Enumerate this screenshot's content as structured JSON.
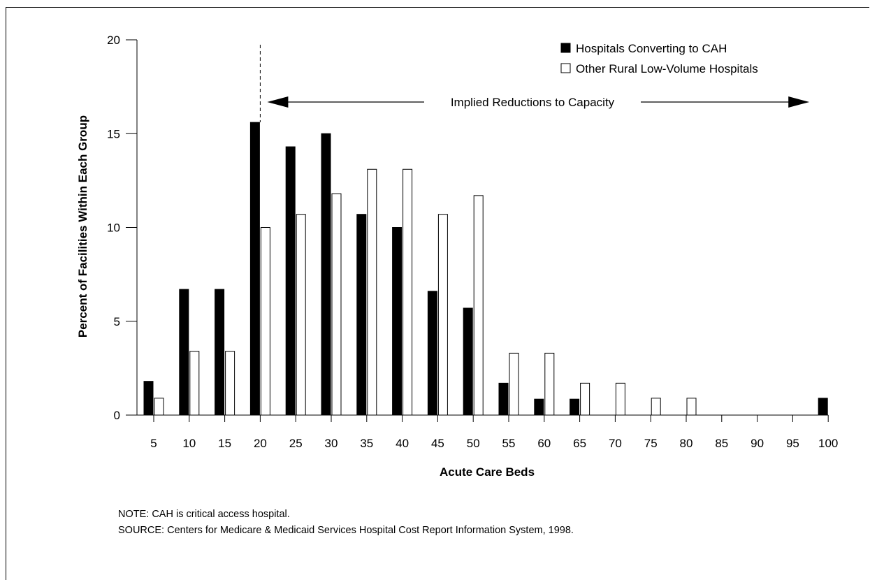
{
  "chart_data": {
    "type": "bar",
    "title": "",
    "xlabel": "Acute Care Beds",
    "ylabel": "Percent of Facilities Within Each Group",
    "ylim": [
      0,
      20
    ],
    "yticks": [
      0,
      5,
      10,
      15,
      20
    ],
    "categories": [
      "5",
      "10",
      "15",
      "20",
      "25",
      "30",
      "35",
      "40",
      "45",
      "50",
      "55",
      "60",
      "65",
      "70",
      "75",
      "80",
      "85",
      "90",
      "95",
      "100"
    ],
    "series": [
      {
        "name": "Hospitals Converting to CAH",
        "fill": "#000000",
        "values": [
          1.8,
          6.7,
          6.7,
          15.6,
          14.3,
          15.0,
          10.7,
          10.0,
          6.6,
          5.7,
          1.7,
          0.85,
          0.85,
          0,
          0,
          0,
          0,
          0,
          0,
          0.9
        ]
      },
      {
        "name": "Other Rural Low-Volume Hospitals",
        "fill": "#ffffff",
        "values": [
          0.9,
          3.4,
          3.4,
          10.0,
          10.7,
          11.8,
          13.1,
          13.1,
          10.7,
          11.7,
          3.3,
          3.3,
          1.7,
          1.7,
          0.9,
          0.9,
          0,
          0,
          0,
          0
        ]
      }
    ],
    "legend_position": "top-right",
    "annotation": {
      "text": "Implied Reductions to Capacity",
      "from_category": "20",
      "to_category": "100",
      "reference_line_at": "20"
    },
    "grid": false
  },
  "notes": {
    "note": "NOTE: CAH is critical access hospital.",
    "source": "SOURCE: Centers for Medicare & Medicaid Services Hospital Cost Report Information System, 1998."
  }
}
